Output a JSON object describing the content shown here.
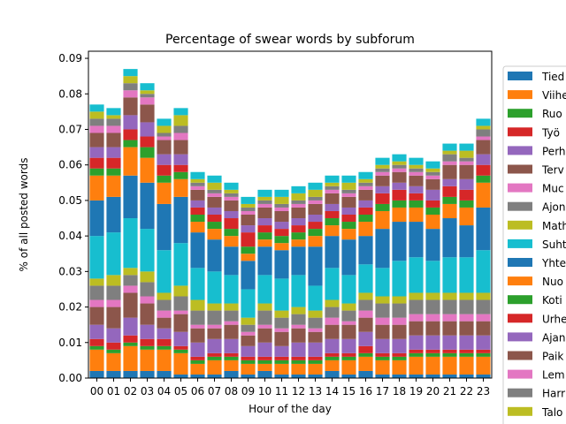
{
  "chart_data": {
    "type": "bar",
    "stacked": true,
    "title": "Percentage of swear words by subforum",
    "xlabel": "Hour of the day",
    "ylabel": "% of all posted words",
    "ylim": [
      0,
      0.092
    ],
    "yticks": [
      0.0,
      0.01,
      0.02,
      0.03,
      0.04,
      0.05,
      0.06,
      0.07,
      0.08,
      0.09
    ],
    "ytick_labels": [
      "0.00",
      "0.01",
      "0.02",
      "0.03",
      "0.04",
      "0.05",
      "0.06",
      "0.07",
      "0.08",
      "0.09"
    ],
    "grid": false,
    "legend_position": "right",
    "categories": [
      "00",
      "01",
      "02",
      "03",
      "04",
      "05",
      "06",
      "07",
      "08",
      "09",
      "10",
      "11",
      "12",
      "13",
      "14",
      "15",
      "16",
      "17",
      "18",
      "19",
      "20",
      "21",
      "22",
      "23"
    ],
    "series": [
      {
        "name": "Tied",
        "color": "#1f77b4",
        "values": [
          0.002,
          0.002,
          0.002,
          0.002,
          0.002,
          0.001,
          0.001,
          0.001,
          0.002,
          0.001,
          0.002,
          0.001,
          0.001,
          0.001,
          0.002,
          0.001,
          0.002,
          0.001,
          0.001,
          0.001,
          0.001,
          0.001,
          0.001,
          0.001
        ]
      },
      {
        "name": "Viihe",
        "color": "#ff7f0e",
        "values": [
          0.006,
          0.005,
          0.007,
          0.006,
          0.006,
          0.006,
          0.003,
          0.004,
          0.003,
          0.003,
          0.002,
          0.003,
          0.003,
          0.003,
          0.003,
          0.004,
          0.004,
          0.004,
          0.004,
          0.005,
          0.005,
          0.005,
          0.005,
          0.005
        ]
      },
      {
        "name": "Ruo",
        "color": "#2ca02c",
        "values": [
          0.001,
          0.001,
          0.001,
          0.001,
          0.001,
          0.001,
          0.001,
          0.001,
          0.001,
          0.001,
          0.001,
          0.001,
          0.001,
          0.001,
          0.001,
          0.001,
          0.001,
          0.001,
          0.001,
          0.001,
          0.001,
          0.001,
          0.001,
          0.001
        ]
      },
      {
        "name": "Työ",
        "color": "#d62728",
        "values": [
          0.002,
          0.002,
          0.002,
          0.002,
          0.002,
          0.001,
          0.001,
          0.001,
          0.001,
          0.001,
          0.001,
          0.001,
          0.001,
          0.001,
          0.001,
          0.001,
          0.002,
          0.001,
          0.001,
          0.001,
          0.001,
          0.001,
          0.001,
          0.001
        ]
      },
      {
        "name": "Perh",
        "color": "#9467bd",
        "values": [
          0.004,
          0.004,
          0.005,
          0.004,
          0.003,
          0.004,
          0.004,
          0.004,
          0.004,
          0.003,
          0.004,
          0.003,
          0.004,
          0.004,
          0.004,
          0.004,
          0.004,
          0.004,
          0.004,
          0.004,
          0.004,
          0.004,
          0.004,
          0.004
        ]
      },
      {
        "name": "Terv",
        "color": "#8c564b",
        "values": [
          0.005,
          0.006,
          0.007,
          0.006,
          0.003,
          0.005,
          0.004,
          0.003,
          0.004,
          0.003,
          0.004,
          0.004,
          0.004,
          0.003,
          0.004,
          0.004,
          0.004,
          0.004,
          0.004,
          0.004,
          0.004,
          0.004,
          0.004,
          0.004
        ]
      },
      {
        "name": "Muc",
        "color": "#e377c2",
        "values": [
          0.002,
          0.002,
          0.002,
          0.002,
          0.002,
          0.001,
          0.001,
          0.001,
          0.001,
          0.001,
          0.001,
          0.001,
          0.001,
          0.001,
          0.002,
          0.001,
          0.002,
          0.002,
          0.002,
          0.002,
          0.002,
          0.002,
          0.002,
          0.002
        ]
      },
      {
        "name": "Ajon",
        "color": "#7f7f7f",
        "values": [
          0.004,
          0.004,
          0.003,
          0.004,
          0.003,
          0.004,
          0.004,
          0.004,
          0.003,
          0.002,
          0.004,
          0.003,
          0.003,
          0.003,
          0.003,
          0.003,
          0.003,
          0.004,
          0.004,
          0.004,
          0.004,
          0.004,
          0.004,
          0.004
        ]
      },
      {
        "name": "Math",
        "color": "#bcbd22",
        "values": [
          0.002,
          0.003,
          0.002,
          0.003,
          0.002,
          0.003,
          0.003,
          0.002,
          0.002,
          0.002,
          0.002,
          0.002,
          0.002,
          0.002,
          0.002,
          0.002,
          0.002,
          0.002,
          0.002,
          0.002,
          0.002,
          0.002,
          0.002,
          0.002
        ]
      },
      {
        "name": "Suht",
        "color": "#17becf",
        "values": [
          0.012,
          0.012,
          0.014,
          0.012,
          0.012,
          0.012,
          0.009,
          0.009,
          0.008,
          0.008,
          0.008,
          0.009,
          0.009,
          0.007,
          0.009,
          0.008,
          0.008,
          0.008,
          0.01,
          0.01,
          0.009,
          0.01,
          0.01,
          0.012
        ]
      },
      {
        "name": "Yhte",
        "color": "#1f77b4",
        "values": [
          0.01,
          0.01,
          0.012,
          0.013,
          0.013,
          0.013,
          0.01,
          0.009,
          0.008,
          0.008,
          0.008,
          0.008,
          0.008,
          0.011,
          0.009,
          0.01,
          0.008,
          0.011,
          0.011,
          0.01,
          0.009,
          0.011,
          0.009,
          0.012
        ]
      },
      {
        "name": "Nuo",
        "color": "#ff7f0e",
        "values": [
          0.007,
          0.006,
          0.008,
          0.007,
          0.006,
          0.005,
          0.003,
          0.003,
          0.003,
          0.002,
          0.002,
          0.002,
          0.002,
          0.003,
          0.003,
          0.003,
          0.004,
          0.005,
          0.004,
          0.004,
          0.004,
          0.004,
          0.005,
          0.007
        ]
      },
      {
        "name": "Koti",
        "color": "#2ca02c",
        "values": [
          0.002,
          0.002,
          0.002,
          0.003,
          0.002,
          0.002,
          0.002,
          0.002,
          0.002,
          0.002,
          0.002,
          0.002,
          0.002,
          0.002,
          0.002,
          0.002,
          0.002,
          0.002,
          0.002,
          0.002,
          0.002,
          0.002,
          0.002,
          0.002
        ]
      },
      {
        "name": "Urhe",
        "color": "#d62728",
        "values": [
          0.003,
          0.003,
          0.003,
          0.003,
          0.003,
          0.002,
          0.002,
          0.002,
          0.003,
          0.004,
          0.002,
          0.002,
          0.002,
          0.002,
          0.002,
          0.002,
          0.002,
          0.003,
          0.003,
          0.002,
          0.002,
          0.003,
          0.003,
          0.003
        ]
      },
      {
        "name": "Ajan",
        "color": "#9467bd",
        "values": [
          0.003,
          0.003,
          0.004,
          0.004,
          0.003,
          0.003,
          0.002,
          0.002,
          0.002,
          0.002,
          0.002,
          0.002,
          0.002,
          0.002,
          0.002,
          0.002,
          0.002,
          0.002,
          0.002,
          0.002,
          0.003,
          0.002,
          0.003,
          0.003
        ]
      },
      {
        "name": "Paik",
        "color": "#8c564b",
        "values": [
          0.004,
          0.004,
          0.005,
          0.005,
          0.004,
          0.004,
          0.003,
          0.003,
          0.003,
          0.003,
          0.003,
          0.003,
          0.003,
          0.003,
          0.003,
          0.003,
          0.003,
          0.003,
          0.003,
          0.003,
          0.003,
          0.004,
          0.004,
          0.004
        ]
      },
      {
        "name": "Lem",
        "color": "#e377c2",
        "values": [
          0.002,
          0.002,
          0.002,
          0.002,
          0.001,
          0.002,
          0.001,
          0.001,
          0.001,
          0.001,
          0.001,
          0.001,
          0.001,
          0.001,
          0.001,
          0.001,
          0.001,
          0.001,
          0.001,
          0.001,
          0.001,
          0.001,
          0.001,
          0.001
        ]
      },
      {
        "name": "Harr",
        "color": "#7f7f7f",
        "values": [
          0.002,
          0.002,
          0.002,
          0.001,
          0.001,
          0.002,
          0.001,
          0.001,
          0.001,
          0.001,
          0.001,
          0.001,
          0.001,
          0.001,
          0.001,
          0.001,
          0.001,
          0.001,
          0.001,
          0.001,
          0.001,
          0.002,
          0.001,
          0.002
        ]
      },
      {
        "name": "Talo",
        "color": "#bcbd22",
        "values": [
          0.002,
          0.001,
          0.002,
          0.001,
          0.002,
          0.003,
          0.001,
          0.002,
          0.001,
          0.001,
          0.001,
          0.002,
          0.002,
          0.002,
          0.001,
          0.002,
          0.001,
          0.001,
          0.001,
          0.001,
          0.001,
          0.001,
          0.002,
          0.001
        ]
      },
      {
        "name": "",
        "color": "#17becf",
        "values": [
          0.002,
          0.002,
          0.002,
          0.002,
          0.002,
          0.002,
          0.002,
          0.002,
          0.002,
          0.002,
          0.002,
          0.002,
          0.002,
          0.002,
          0.002,
          0.002,
          0.002,
          0.002,
          0.002,
          0.002,
          0.002,
          0.002,
          0.002,
          0.002
        ]
      }
    ]
  }
}
